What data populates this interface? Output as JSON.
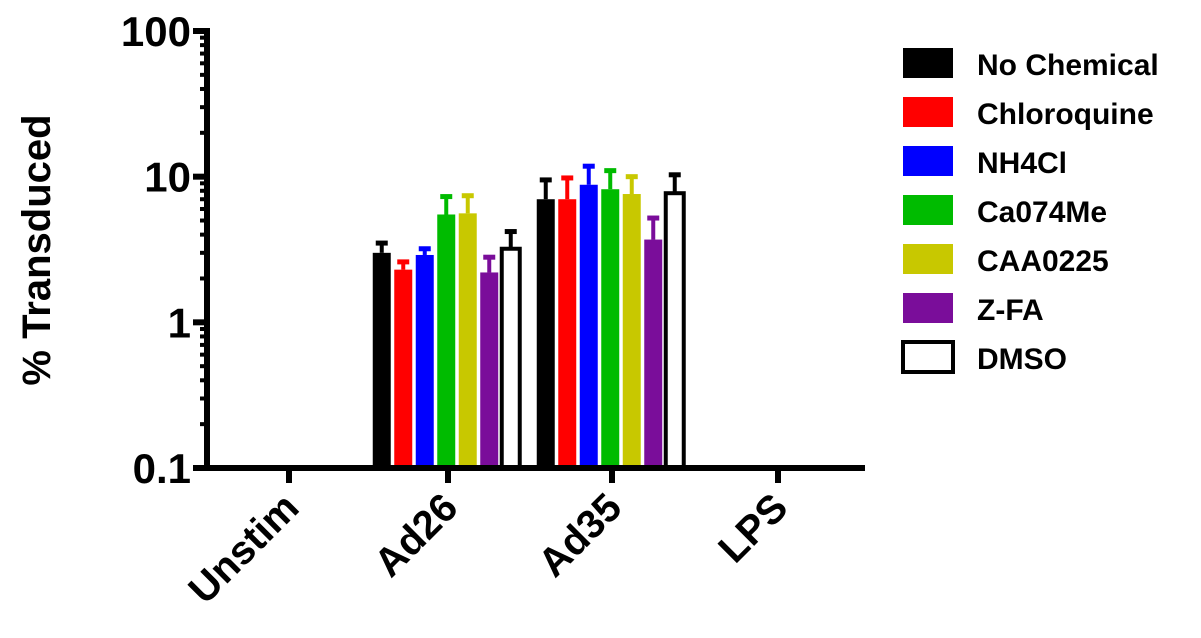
{
  "chart_data": {
    "type": "bar",
    "title": "",
    "xlabel": "",
    "ylabel": "% Transduced",
    "yscale": "log",
    "ylim": [
      0.1,
      100
    ],
    "yticks": [
      {
        "value": 0.1,
        "label": "0.1"
      },
      {
        "value": 1,
        "label": "1"
      },
      {
        "value": 10,
        "label": "10"
      },
      {
        "value": 100,
        "label": "100"
      }
    ],
    "categories": [
      "Unstim",
      "Ad26",
      "Ad35",
      "LPS"
    ],
    "legend_position": "right",
    "grid": false,
    "error_bars": "upper",
    "series": [
      {
        "name": "No Chemical",
        "color": "#000000",
        "outline": false,
        "values": [
          null,
          3.0,
          7.0,
          null
        ],
        "error_upper": [
          null,
          3.5,
          9.5,
          null
        ]
      },
      {
        "name": "Chloroquine",
        "color": "#ff0000",
        "outline": false,
        "values": [
          null,
          2.3,
          7.0,
          null
        ],
        "error_upper": [
          null,
          2.6,
          9.8,
          null
        ]
      },
      {
        "name": "NH4Cl",
        "color": "#0000ff",
        "outline": false,
        "values": [
          null,
          2.9,
          8.8,
          null
        ],
        "error_upper": [
          null,
          3.2,
          11.8,
          null
        ]
      },
      {
        "name": "Ca074Me",
        "color": "#00bb00",
        "outline": false,
        "values": [
          null,
          5.5,
          8.2,
          null
        ],
        "error_upper": [
          null,
          7.3,
          11.0,
          null
        ]
      },
      {
        "name": "CAA0225",
        "color": "#c8c800",
        "outline": false,
        "values": [
          null,
          5.6,
          7.6,
          null
        ],
        "error_upper": [
          null,
          7.4,
          10.0,
          null
        ]
      },
      {
        "name": "Z-FA",
        "color": "#7a0d9a",
        "outline": false,
        "values": [
          null,
          2.2,
          3.7,
          null
        ],
        "error_upper": [
          null,
          2.8,
          5.2,
          null
        ]
      },
      {
        "name": "DMSO",
        "color": "#ffffff",
        "outline": true,
        "values": [
          null,
          3.2,
          7.7,
          null
        ],
        "error_upper": [
          null,
          4.2,
          10.3,
          null
        ]
      }
    ]
  }
}
